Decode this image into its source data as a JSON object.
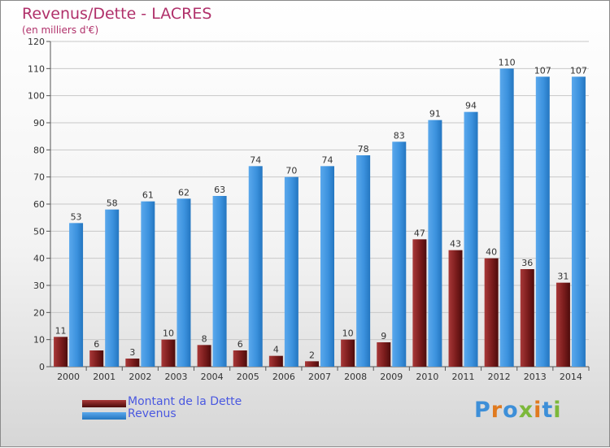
{
  "title": "Revenus/Dette - LACRES",
  "subtitle": "(en milliers d'€)",
  "logo": {
    "letters": [
      "P",
      "r",
      "o",
      "x",
      "i",
      "t",
      "i"
    ]
  },
  "colors": {
    "dette": "#7a1c1c",
    "revenus": "#3c92de",
    "title": "#b0306a",
    "legend_text": "#4a58e0"
  },
  "chart_data": {
    "type": "bar",
    "title": "Revenus/Dette - LACRES",
    "subtitle": "(en milliers d'€)",
    "categories": [
      "2000",
      "2001",
      "2002",
      "2003",
      "2004",
      "2005",
      "2006",
      "2007",
      "2008",
      "2009",
      "2010",
      "2011",
      "2012",
      "2013",
      "2014"
    ],
    "series": [
      {
        "name": "Montant de la Dette",
        "values": [
          11,
          6,
          3,
          10,
          8,
          6,
          4,
          2,
          10,
          9,
          47,
          43,
          40,
          36,
          31
        ]
      },
      {
        "name": "Revenus",
        "values": [
          53,
          58,
          61,
          62,
          63,
          74,
          70,
          74,
          78,
          83,
          91,
          94,
          110,
          107,
          107
        ]
      }
    ],
    "ylim": [
      0,
      120
    ],
    "yticks": [
      0,
      10,
      20,
      30,
      40,
      50,
      60,
      70,
      80,
      90,
      100,
      110,
      120
    ],
    "grid": true,
    "legend": "bottom-left"
  }
}
